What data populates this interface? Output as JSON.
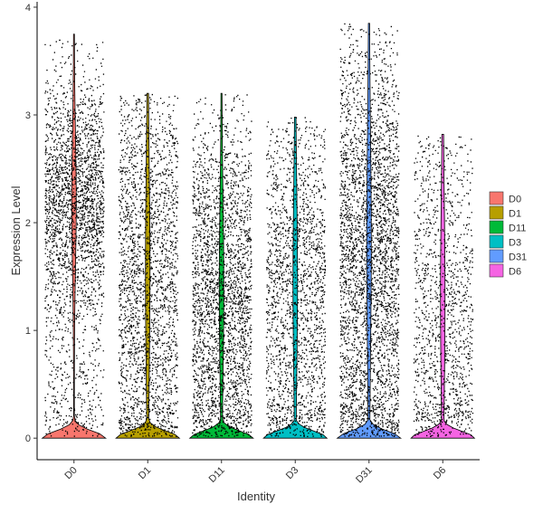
{
  "chart_data": {
    "type": "violin",
    "xlabel": "Identity",
    "ylabel": "Expression Level",
    "ylim": [
      -0.2,
      4.05
    ],
    "yticks": [
      0,
      1,
      2,
      3,
      4
    ],
    "legend_position": "right",
    "categories": [
      "D0",
      "D1",
      "D11",
      "D3",
      "D31",
      "D6"
    ],
    "series": [
      {
        "name": "D0",
        "color": "#F8766D",
        "max": 3.75,
        "points": 2600,
        "median_band": [
          1.8,
          2.6
        ]
      },
      {
        "name": "D1",
        "color": "#B79F00",
        "max": 3.2,
        "points": 2300,
        "median_band": [
          0.8,
          2.3
        ]
      },
      {
        "name": "D11",
        "color": "#00BA38",
        "max": 3.2,
        "points": 2700,
        "median_band": [
          0.8,
          2.0
        ]
      },
      {
        "name": "D3",
        "color": "#00BFC4",
        "max": 2.98,
        "points": 1900,
        "median_band": [
          0.8,
          2.1
        ]
      },
      {
        "name": "D31",
        "color": "#619CFF",
        "max": 3.85,
        "points": 3400,
        "median_band": [
          1.0,
          2.6
        ]
      },
      {
        "name": "D6",
        "color": "#F564E3",
        "max": 2.82,
        "points": 1300,
        "median_band": [
          0.6,
          2.0
        ]
      }
    ]
  }
}
